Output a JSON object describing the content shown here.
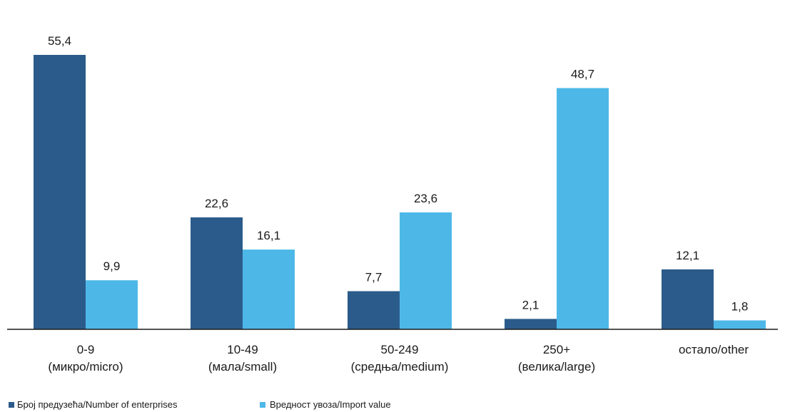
{
  "chart_data": {
    "type": "bar",
    "categories": [
      [
        "0-9",
        "(микро/micro)"
      ],
      [
        "10-49",
        "(мала/small)"
      ],
      [
        "50-249",
        "(средња/medium)"
      ],
      [
        "250+",
        "(велика/large)"
      ],
      [
        "остало/other"
      ]
    ],
    "series": [
      {
        "name": "Број предузећа/Number  of enterprises",
        "color": "#2b5b8a",
        "values": [
          55.4,
          22.6,
          7.7,
          2.1,
          12.1
        ],
        "labels": [
          "55,4",
          "22,6",
          "7,7",
          "2,1",
          "12,1"
        ]
      },
      {
        "name": "Вредност увоза/Import  value",
        "color": "#4db8e8",
        "values": [
          9.9,
          16.1,
          23.6,
          48.7,
          1.8
        ],
        "labels": [
          "9,9",
          "16,1",
          "23,6",
          "48,7",
          "1,8"
        ]
      }
    ],
    "ylim": [
      0,
      58
    ],
    "grid": false,
    "legend_position": "bottom-left",
    "title": "",
    "xlabel": "",
    "ylabel": ""
  }
}
